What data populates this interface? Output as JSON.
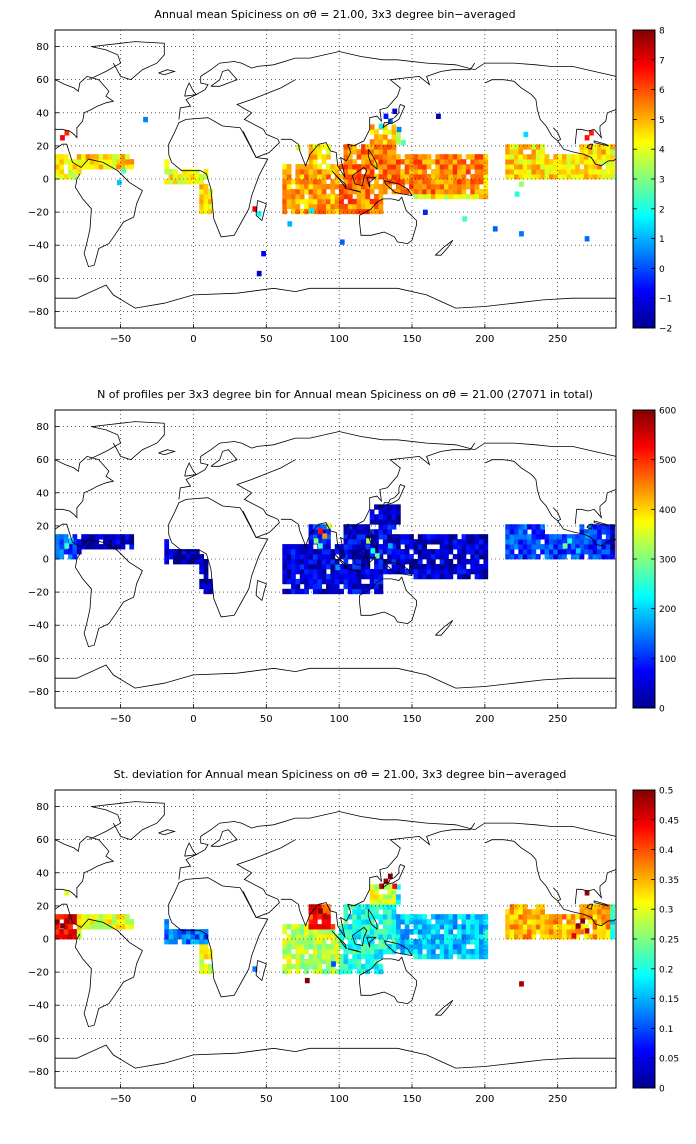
{
  "panels": [
    {
      "id": "mean",
      "title": "Annual mean Spiciness on σθ = 21.00, 3x3 degree bin−averaged",
      "colorbar": {
        "min": -2,
        "max": 8,
        "ticks": [
          "8",
          "7",
          "6",
          "5",
          "4",
          "3",
          "2",
          "1",
          "0",
          "−1",
          "−2"
        ]
      },
      "default_value": 4.3,
      "regions": [
        {
          "lon": [
            -95,
            -80
          ],
          "lat": [
            0,
            15
          ],
          "value": 4.3
        },
        {
          "lon": [
            -80,
            -40
          ],
          "lat": [
            0,
            15
          ],
          "value": 4.6
        },
        {
          "lon": [
            -20,
            10
          ],
          "lat": [
            -3,
            12
          ],
          "value": 4.3
        },
        {
          "lon": [
            5,
            12
          ],
          "lat": [
            -20,
            -3
          ],
          "value": 4.5
        },
        {
          "lon": [
            60,
            100
          ],
          "lat": [
            -20,
            10
          ],
          "value": 5.2
        },
        {
          "lon": [
            80,
            100
          ],
          "lat": [
            5,
            22
          ],
          "value": 4.8
        },
        {
          "lon": [
            100,
            140
          ],
          "lat": [
            -20,
            20
          ],
          "value": 5.5
        },
        {
          "lon": [
            120,
            140
          ],
          "lat": [
            20,
            35
          ],
          "value": 4.8
        },
        {
          "lon": [
            140,
            200
          ],
          "lat": [
            -10,
            15
          ],
          "value": 5.5
        },
        {
          "lon": [
            215,
            285
          ],
          "lat": [
            0,
            20
          ],
          "value": 4.6
        }
      ],
      "spots": [
        {
          "lon": -90,
          "lat": 25,
          "value": 6.8
        },
        {
          "lon": -87,
          "lat": 28,
          "value": 6.4
        },
        {
          "lon": 270,
          "lat": 25,
          "value": 6.6
        },
        {
          "lon": 273,
          "lat": 28,
          "value": 6.5
        },
        {
          "lon": 135,
          "lat": 35,
          "value": 0.2
        },
        {
          "lon": 132,
          "lat": 38,
          "value": -0.6
        },
        {
          "lon": 138,
          "lat": 41,
          "value": -1.2
        },
        {
          "lon": 129,
          "lat": 32,
          "value": 1.6
        },
        {
          "lon": 141,
          "lat": 30,
          "value": 0.5
        },
        {
          "lon": 144,
          "lat": 22,
          "value": 2.6
        },
        {
          "lon": -33,
          "lat": 36,
          "value": 0.5
        },
        {
          "lon": 168,
          "lat": 38,
          "value": -1.5
        },
        {
          "lon": 228,
          "lat": 27,
          "value": 1.4
        },
        {
          "lon": 225,
          "lat": -3,
          "value": 3.2
        },
        {
          "lon": 222,
          "lat": -9,
          "value": 2.1
        },
        {
          "lon": 186,
          "lat": -24,
          "value": 2.4
        },
        {
          "lon": 72,
          "lat": 19,
          "value": 3.8
        },
        {
          "lon": 102,
          "lat": -38,
          "value": 0.2
        },
        {
          "lon": 81,
          "lat": -19,
          "value": 1.6
        },
        {
          "lon": 48,
          "lat": -45,
          "value": -0.8
        },
        {
          "lon": 42,
          "lat": -18,
          "value": 7.1
        },
        {
          "lon": 45,
          "lat": -21,
          "value": 1.8
        },
        {
          "lon": 270,
          "lat": -36,
          "value": 0.3
        },
        {
          "lon": 225,
          "lat": -33,
          "value": 0.4
        },
        {
          "lon": -48,
          "lat": 5,
          "value": 2.6
        },
        {
          "lon": -51,
          "lat": -2,
          "value": 1.2
        },
        {
          "lon": 45,
          "lat": -57,
          "value": -1.3
        },
        {
          "lon": 159,
          "lat": -20,
          "value": -0.4
        },
        {
          "lon": 207,
          "lat": -30,
          "value": 0.2
        },
        {
          "lon": 66,
          "lat": -27,
          "value": 1.0
        }
      ]
    },
    {
      "id": "count",
      "title": "N of profiles per 3x3 degree bin for Annual mean Spiciness on σθ = 21.00 (27071 in total)",
      "colorbar": {
        "min": 0,
        "max": 600,
        "ticks": [
          "600",
          "500",
          "400",
          "300",
          "200",
          "100",
          "0"
        ]
      },
      "default_value": 40,
      "regions": [
        {
          "lon": [
            -95,
            -80
          ],
          "lat": [
            0,
            15
          ],
          "value": 120
        },
        {
          "lon": [
            -80,
            -40
          ],
          "lat": [
            0,
            15
          ],
          "value": 45
        },
        {
          "lon": [
            -20,
            10
          ],
          "lat": [
            -3,
            12
          ],
          "value": 30
        },
        {
          "lon": [
            5,
            12
          ],
          "lat": [
            -20,
            -3
          ],
          "value": 25
        },
        {
          "lon": [
            60,
            100
          ],
          "lat": [
            -20,
            10
          ],
          "value": 55
        },
        {
          "lon": [
            80,
            100
          ],
          "lat": [
            5,
            22
          ],
          "value": 90
        },
        {
          "lon": [
            100,
            140
          ],
          "lat": [
            -20,
            20
          ],
          "value": 60
        },
        {
          "lon": [
            120,
            140
          ],
          "lat": [
            20,
            35
          ],
          "value": 50
        },
        {
          "lon": [
            140,
            200
          ],
          "lat": [
            -10,
            15
          ],
          "value": 45
        },
        {
          "lon": [
            215,
            285
          ],
          "lat": [
            0,
            20
          ],
          "value": 110
        }
      ],
      "spots": [
        {
          "lon": 87,
          "lat": 17,
          "value": 520
        },
        {
          "lon": 90,
          "lat": 14,
          "value": 440
        },
        {
          "lon": 84,
          "lat": 11,
          "value": 300
        },
        {
          "lon": 93,
          "lat": 20,
          "value": 360
        },
        {
          "lon": 87,
          "lat": 8,
          "value": 250
        },
        {
          "lon": 120,
          "lat": 11,
          "value": 330
        },
        {
          "lon": 123,
          "lat": 5,
          "value": 230
        },
        {
          "lon": 126,
          "lat": 2,
          "value": 280
        },
        {
          "lon": 135,
          "lat": 8,
          "value": 180
        },
        {
          "lon": 255,
          "lat": 8,
          "value": 290
        },
        {
          "lon": 258,
          "lat": 11,
          "value": 240
        },
        {
          "lon": 264,
          "lat": 5,
          "value": 200
        },
        {
          "lon": -87,
          "lat": 8,
          "value": 260
        },
        {
          "lon": -84,
          "lat": 11,
          "value": 200
        },
        {
          "lon": 270,
          "lat": 14,
          "value": 170
        },
        {
          "lon": 99,
          "lat": -5,
          "value": 160
        }
      ]
    },
    {
      "id": "std",
      "title": "St. deviation for Annual mean Spiciness on σθ = 21.00, 3x3 degree bin−averaged",
      "colorbar": {
        "min": 0,
        "max": 0.5,
        "ticks": [
          "0.5",
          "0.45",
          "0.4",
          "0.35",
          "0.3",
          "0.25",
          "0.2",
          "0.15",
          "0.1",
          "0.05",
          "0"
        ]
      },
      "default_value": 0.18,
      "regions": [
        {
          "lon": [
            -95,
            -80
          ],
          "lat": [
            0,
            15
          ],
          "value": 0.45
        },
        {
          "lon": [
            -80,
            -40
          ],
          "lat": [
            0,
            15
          ],
          "value": 0.3
        },
        {
          "lon": [
            -20,
            10
          ],
          "lat": [
            -3,
            12
          ],
          "value": 0.12
        },
        {
          "lon": [
            5,
            12
          ],
          "lat": [
            -20,
            -3
          ],
          "value": 0.3
        },
        {
          "lon": [
            60,
            100
          ],
          "lat": [
            -20,
            10
          ],
          "value": 0.28
        },
        {
          "lon": [
            80,
            100
          ],
          "lat": [
            5,
            22
          ],
          "value": 0.42
        },
        {
          "lon": [
            100,
            140
          ],
          "lat": [
            -20,
            20
          ],
          "value": 0.2
        },
        {
          "lon": [
            120,
            140
          ],
          "lat": [
            20,
            35
          ],
          "value": 0.3
        },
        {
          "lon": [
            140,
            200
          ],
          "lat": [
            -10,
            15
          ],
          "value": 0.16
        },
        {
          "lon": [
            215,
            285
          ],
          "lat": [
            0,
            20
          ],
          "value": 0.35
        }
      ],
      "spots": [
        {
          "lon": 132,
          "lat": 35,
          "value": 0.49
        },
        {
          "lon": 135,
          "lat": 38,
          "value": 0.5
        },
        {
          "lon": 129,
          "lat": 32,
          "value": 0.47
        },
        {
          "lon": 138,
          "lat": 32,
          "value": 0.44
        },
        {
          "lon": 264,
          "lat": 8,
          "value": 0.49
        },
        {
          "lon": 267,
          "lat": 11,
          "value": 0.5
        },
        {
          "lon": 270,
          "lat": 5,
          "value": 0.47
        },
        {
          "lon": 261,
          "lat": 2,
          "value": 0.45
        },
        {
          "lon": -90,
          "lat": 8,
          "value": 0.5
        },
        {
          "lon": -87,
          "lat": 11,
          "value": 0.48
        },
        {
          "lon": 87,
          "lat": 17,
          "value": 0.5
        },
        {
          "lon": 90,
          "lat": 14,
          "value": 0.47
        },
        {
          "lon": 78,
          "lat": -25,
          "value": 0.5
        },
        {
          "lon": 96,
          "lat": -15,
          "value": 0.1
        },
        {
          "lon": 225,
          "lat": -27,
          "value": 0.48
        },
        {
          "lon": 270,
          "lat": 28,
          "value": 0.49
        },
        {
          "lon": -87,
          "lat": 28,
          "value": 0.3
        },
        {
          "lon": 42,
          "lat": -18,
          "value": 0.12
        }
      ]
    }
  ],
  "axes": {
    "xlim": [
      -95,
      290
    ],
    "ylim": [
      -90,
      90
    ],
    "xticks": [
      -50,
      0,
      50,
      100,
      150,
      200,
      250
    ],
    "yticks": [
      80,
      60,
      40,
      20,
      0,
      -20,
      -40,
      -60,
      -80
    ]
  }
}
